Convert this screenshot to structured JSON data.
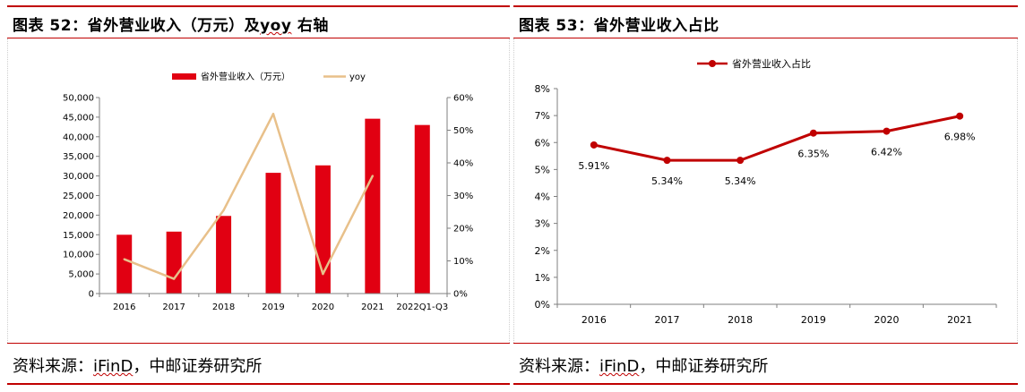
{
  "colors": {
    "accent_red": "#c00000",
    "bar_red": "#e10012",
    "yoy_tan": "#e8c08a",
    "axis_gray": "#7f7f7f"
  },
  "left_panel": {
    "title_prefix": "图表 52：省外营业收入（万元）及",
    "title_yoy": "yoy",
    "title_suffix": " 右轴",
    "source_prefix": "资料来源：",
    "source_ifind": "iFinD",
    "source_suffix": "，中邮证券研究所"
  },
  "right_panel": {
    "title": "图表 53：省外营业收入占比",
    "source_prefix": "资料来源：",
    "source_ifind": "iFinD",
    "source_suffix": "，中邮证券研究所"
  },
  "chart_data": [
    {
      "type": "bar",
      "title": "",
      "categories": [
        "2016",
        "2017",
        "2018",
        "2019",
        "2020",
        "2021",
        "2022Q1-Q3"
      ],
      "series": [
        {
          "name": "省外营业收入（万元）",
          "kind": "bar",
          "axis": "left",
          "values": [
            15000,
            15800,
            19800,
            30800,
            32700,
            44600,
            43000
          ]
        },
        {
          "name": "yoy",
          "kind": "line",
          "axis": "right",
          "values": [
            10.5,
            4.5,
            25.5,
            55.0,
            6.0,
            36.0,
            null
          ]
        }
      ],
      "y_left": {
        "min": 0,
        "max": 50000,
        "step": 5000,
        "tick_labels": [
          "0",
          "5,000",
          "10,000",
          "15,000",
          "20,000",
          "25,000",
          "30,000",
          "35,000",
          "40,000",
          "45,000",
          "50,000"
        ]
      },
      "y_right": {
        "min": 0,
        "max": 60,
        "step": 10,
        "tick_labels": [
          "0%",
          "10%",
          "20%",
          "30%",
          "40%",
          "50%",
          "60%"
        ]
      },
      "legend": {
        "position": "top",
        "items": [
          "省外营业收入（万元）",
          "yoy"
        ]
      },
      "grid": false
    },
    {
      "type": "line",
      "title": "",
      "categories": [
        "2016",
        "2017",
        "2018",
        "2019",
        "2020",
        "2021"
      ],
      "series": [
        {
          "name": "省外营业收入占比",
          "values": [
            5.91,
            5.34,
            5.34,
            6.35,
            6.42,
            6.98
          ],
          "data_labels": [
            "5.91%",
            "5.34%",
            "5.34%",
            "6.35%",
            "6.42%",
            "6.98%"
          ]
        }
      ],
      "y": {
        "min": 0,
        "max": 8,
        "step": 1,
        "tick_labels": [
          "0%",
          "1%",
          "2%",
          "3%",
          "4%",
          "5%",
          "6%",
          "7%",
          "8%"
        ]
      },
      "legend": {
        "position": "top",
        "items": [
          "省外营业收入占比"
        ]
      },
      "grid": false
    }
  ]
}
